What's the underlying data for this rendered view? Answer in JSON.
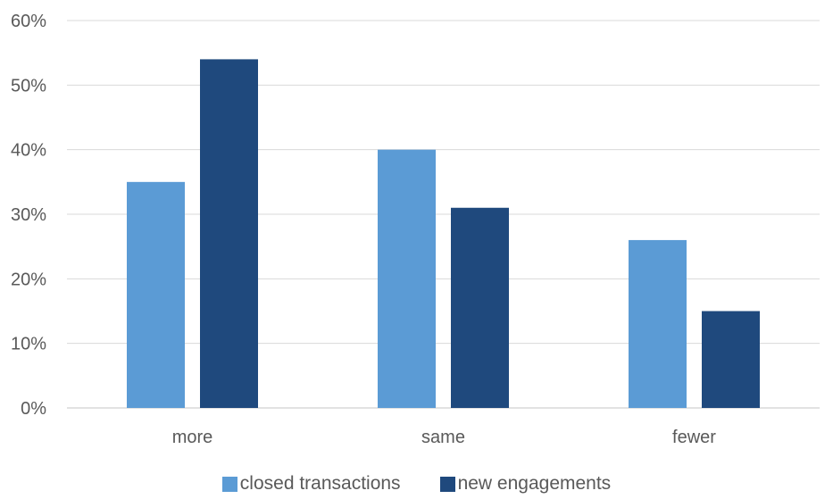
{
  "chart_data": {
    "type": "bar",
    "categories": [
      "more",
      "same",
      "fewer"
    ],
    "series": [
      {
        "name": "closed transactions",
        "values": [
          35,
          40,
          26
        ],
        "color": "#5b9bd5"
      },
      {
        "name": "new engagements",
        "values": [
          54,
          31,
          15
        ],
        "color": "#1f497d"
      }
    ],
    "y_ticks": [
      "0%",
      "10%",
      "20%",
      "30%",
      "40%",
      "50%",
      "60%"
    ],
    "ylim": [
      0,
      60
    ],
    "y_unit": "%",
    "grid": true,
    "legend_position": "bottom",
    "colors": {
      "gridline": "#d9d9d9",
      "text": "#595959"
    }
  }
}
